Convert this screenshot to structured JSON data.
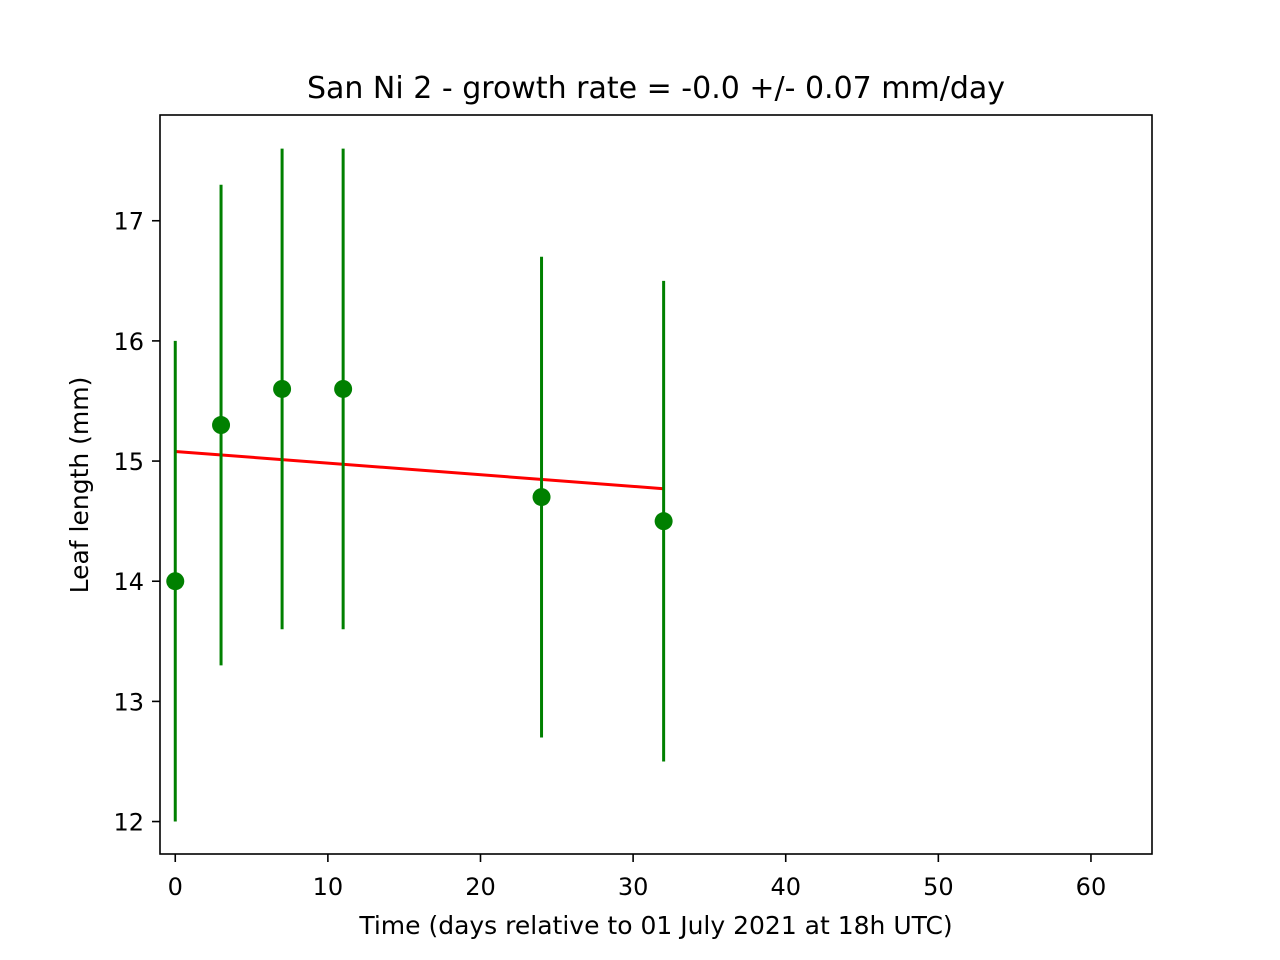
{
  "chart_data": {
    "type": "scatter",
    "title": "San Ni 2  -  growth rate = -0.0 +/- 0.07 mm/day",
    "xlabel": "Time (days relative to 01 July 2021 at 18h UTC)",
    "ylabel": "Leaf length (mm)",
    "xlim": [
      -1,
      64
    ],
    "ylim": [
      11.73,
      17.88
    ],
    "xticks": [
      0,
      10,
      20,
      30,
      40,
      50,
      60
    ],
    "yticks": [
      12,
      13,
      14,
      15,
      16,
      17
    ],
    "grid": false,
    "series": [
      {
        "kind": "errorbar",
        "color": "#008000",
        "points": [
          {
            "x": 0,
            "y": 14.0,
            "err": 2.0
          },
          {
            "x": 3,
            "y": 15.3,
            "err": 2.0
          },
          {
            "x": 7,
            "y": 15.6,
            "err": 2.0
          },
          {
            "x": 11,
            "y": 15.6,
            "err": 2.0
          },
          {
            "x": 24,
            "y": 14.7,
            "err": 2.0
          },
          {
            "x": 32,
            "y": 14.5,
            "err": 2.0
          }
        ]
      },
      {
        "kind": "fit-line",
        "color": "#ff0000",
        "x": [
          0,
          32
        ],
        "y": [
          15.08,
          14.77
        ]
      }
    ]
  }
}
